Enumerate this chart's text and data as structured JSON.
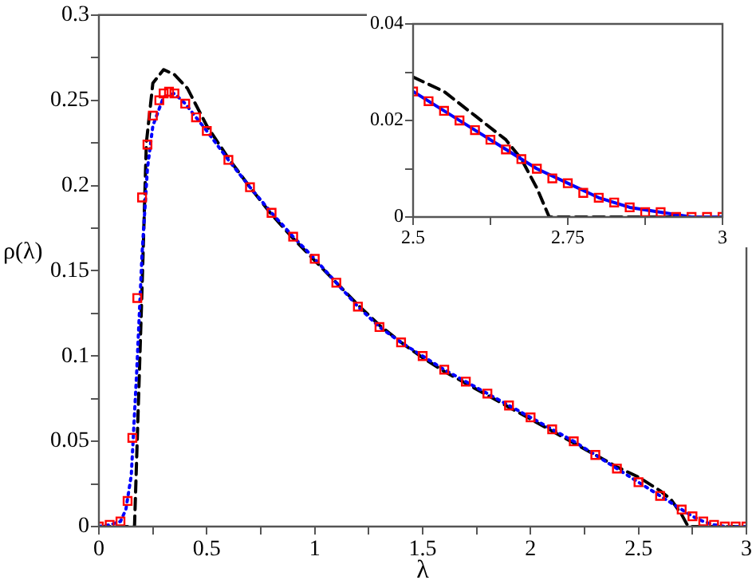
{
  "chart_data": [
    {
      "type": "line",
      "xlabel": "λ",
      "ylabel": "ρ(λ)",
      "xlim": [
        0,
        3
      ],
      "ylim": [
        0,
        0.3
      ],
      "xticks": [
        0,
        {
          "value": 0.25,
          "label": null
        },
        0.5,
        {
          "value": 0.75,
          "label": null
        },
        1,
        {
          "value": 1.25,
          "label": null
        },
        1.5,
        {
          "value": 1.75,
          "label": null
        },
        2,
        {
          "value": 2.25,
          "label": null
        },
        2.5,
        {
          "value": 2.75,
          "label": null
        },
        3
      ],
      "yticks": [
        0,
        {
          "value": 0.025,
          "label": null
        },
        0.05,
        {
          "value": 0.075,
          "label": null
        },
        0.1,
        {
          "value": 0.125,
          "label": null
        },
        0.15,
        {
          "value": 0.175,
          "label": null
        },
        0.2,
        {
          "value": 0.225,
          "label": null
        },
        0.25,
        {
          "value": 0.275,
          "label": null
        },
        0.3
      ],
      "series": [
        {
          "type": "line",
          "color": "#000000",
          "line_style": "dashed",
          "marker": "none",
          "x": [
            0,
            0.165,
            0.18,
            0.2,
            0.22,
            0.25,
            0.3,
            0.35,
            0.41,
            0.5,
            0.6,
            0.7,
            0.8,
            0.9,
            1.0,
            1.1,
            1.2,
            1.3,
            1.4,
            1.5,
            1.6,
            1.7,
            1.8,
            1.9,
            2.0,
            2.1,
            2.2,
            2.3,
            2.4,
            2.5,
            2.6,
            2.65,
            2.7,
            2.73,
            3.0
          ],
          "values": [
            0,
            0,
            0.06,
            0.14,
            0.225,
            0.26,
            0.268,
            0.265,
            0.257,
            0.235,
            0.216,
            0.199,
            0.183,
            0.169,
            0.156,
            0.143,
            0.13,
            0.118,
            0.108,
            0.099,
            0.091,
            0.084,
            0.077,
            0.07,
            0.063,
            0.056,
            0.049,
            0.042,
            0.035,
            0.029,
            0.021,
            0.016,
            0.007,
            0,
            0
          ]
        },
        {
          "type": "line",
          "color": "#0000ff",
          "line_style": "dotted",
          "marker": "none",
          "x": [
            0,
            0.05,
            0.1,
            0.125,
            0.15,
            0.175,
            0.2,
            0.225,
            0.25,
            0.3,
            0.35,
            0.4,
            0.45,
            0.5,
            0.6,
            0.7,
            0.8,
            0.9,
            1.0,
            1.1,
            1.2,
            1.3,
            1.4,
            1.5,
            1.6,
            1.7,
            1.8,
            1.9,
            2.0,
            2.1,
            2.2,
            2.3,
            2.4,
            2.5,
            2.6,
            2.7,
            2.75,
            2.8,
            2.85,
            2.9,
            2.95,
            3.0
          ],
          "values": [
            0,
            0.001,
            0.003,
            0.01,
            0.03,
            0.09,
            0.16,
            0.21,
            0.235,
            0.252,
            0.254,
            0.248,
            0.24,
            0.232,
            0.215,
            0.199,
            0.184,
            0.17,
            0.157,
            0.143,
            0.129,
            0.117,
            0.108,
            0.1,
            0.092,
            0.085,
            0.078,
            0.071,
            0.064,
            0.057,
            0.05,
            0.042,
            0.034,
            0.026,
            0.018,
            0.01,
            0.006,
            0.003,
            0.001,
            0,
            0,
            0
          ]
        },
        {
          "type": "scatter",
          "color": "#ff0000",
          "marker": "square",
          "x": [
            0,
            0.05,
            0.1,
            0.133,
            0.155,
            0.178,
            0.2,
            0.225,
            0.25,
            0.28,
            0.3,
            0.325,
            0.35,
            0.4,
            0.45,
            0.5,
            0.6,
            0.7,
            0.8,
            0.9,
            1.0,
            1.1,
            1.2,
            1.3,
            1.4,
            1.5,
            1.6,
            1.7,
            1.8,
            1.9,
            2.0,
            2.1,
            2.2,
            2.3,
            2.4,
            2.5,
            2.6,
            2.7,
            2.75,
            2.8,
            2.85,
            2.9,
            2.95,
            3.0
          ],
          "values": [
            0,
            0.001,
            0.003,
            0.015,
            0.052,
            0.134,
            0.193,
            0.224,
            0.241,
            0.25,
            0.254,
            0.255,
            0.254,
            0.248,
            0.24,
            0.232,
            0.215,
            0.199,
            0.184,
            0.17,
            0.157,
            0.143,
            0.129,
            0.117,
            0.108,
            0.1,
            0.092,
            0.085,
            0.078,
            0.071,
            0.064,
            0.057,
            0.05,
            0.042,
            0.034,
            0.026,
            0.018,
            0.01,
            0.006,
            0.003,
            0.001,
            0,
            0,
            0
          ]
        }
      ]
    },
    {
      "type": "line",
      "xlim": [
        2.5,
        3
      ],
      "ylim": [
        0,
        0.04
      ],
      "xticks": [
        2.5,
        {
          "value": 2.625,
          "label": null
        },
        2.75,
        {
          "value": 2.875,
          "label": null
        },
        3
      ],
      "yticks": [
        0,
        {
          "value": 0.01,
          "label": null
        },
        0.02,
        {
          "value": 0.03,
          "label": null
        },
        0.04
      ],
      "series": [
        {
          "type": "line",
          "color": "#000000",
          "line_style": "dashed",
          "marker": "none",
          "x": [
            2.5,
            2.55,
            2.6,
            2.65,
            2.675,
            2.7,
            2.72,
            3.0
          ],
          "values": [
            0.029,
            0.026,
            0.021,
            0.016,
            0.012,
            0.006,
            0,
            0
          ]
        },
        {
          "type": "line",
          "color": "#0000ff",
          "line_style": "solid",
          "marker": "none",
          "x": [
            2.5,
            2.55,
            2.6,
            2.65,
            2.7,
            2.75,
            2.8,
            2.85,
            2.9,
            2.95,
            3.0
          ],
          "values": [
            0.026,
            0.022,
            0.018,
            0.014,
            0.01,
            0.007,
            0.004,
            0.002,
            0.001,
            0,
            0
          ]
        },
        {
          "type": "scatter",
          "color": "#ff0000",
          "marker": "square",
          "x": [
            2.5,
            2.525,
            2.55,
            2.575,
            2.6,
            2.625,
            2.65,
            2.675,
            2.7,
            2.725,
            2.75,
            2.775,
            2.8,
            2.825,
            2.85,
            2.875,
            2.9,
            2.925,
            2.95,
            2.975,
            3.0
          ],
          "values": [
            0.026,
            0.024,
            0.022,
            0.02,
            0.018,
            0.016,
            0.014,
            0.012,
            0.01,
            0.008,
            0.007,
            0.005,
            0.004,
            0.003,
            0.002,
            0.001,
            0.001,
            0,
            0,
            0,
            0
          ]
        }
      ]
    }
  ]
}
